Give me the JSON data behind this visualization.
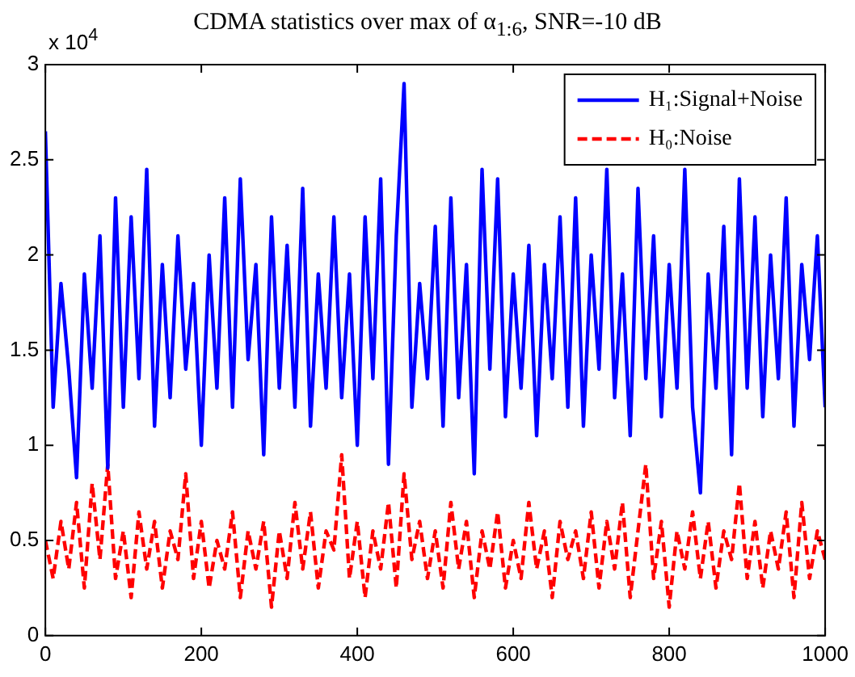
{
  "chart_data": {
    "type": "line",
    "title": "CDMA statistics over max of α$_{1:6}$, SNR=-10 dB",
    "annotations": [
      "x 10$^{4}$"
    ],
    "x": [
      0,
      10,
      20,
      30,
      40,
      50,
      60,
      70,
      80,
      90,
      100,
      110,
      120,
      130,
      140,
      150,
      160,
      170,
      180,
      190,
      200,
      210,
      220,
      230,
      240,
      250,
      260,
      270,
      280,
      290,
      300,
      310,
      320,
      330,
      340,
      350,
      360,
      370,
      380,
      390,
      400,
      410,
      420,
      430,
      440,
      450,
      460,
      470,
      480,
      490,
      500,
      510,
      520,
      530,
      540,
      550,
      560,
      570,
      580,
      590,
      600,
      610,
      620,
      630,
      640,
      650,
      660,
      670,
      680,
      690,
      700,
      710,
      720,
      730,
      740,
      750,
      760,
      770,
      780,
      790,
      800,
      810,
      820,
      830,
      840,
      850,
      860,
      870,
      880,
      890,
      900,
      910,
      920,
      930,
      940,
      950,
      960,
      970,
      980,
      990,
      1000
    ],
    "series": [
      {
        "name": "H₁:Signal+Noise",
        "color": "#0000ff",
        "line_style": "solid",
        "values": [
          2.65,
          1.2,
          1.85,
          1.4,
          0.83,
          1.9,
          1.3,
          2.1,
          0.88,
          2.3,
          1.2,
          2.2,
          1.35,
          2.45,
          1.1,
          1.95,
          1.25,
          2.1,
          1.4,
          1.85,
          1.0,
          2.0,
          1.3,
          2.3,
          1.2,
          2.4,
          1.45,
          1.95,
          0.95,
          2.2,
          1.3,
          2.05,
          1.2,
          2.35,
          1.1,
          1.9,
          1.3,
          2.2,
          1.25,
          1.9,
          1.0,
          2.2,
          1.35,
          2.4,
          0.9,
          2.1,
          2.9,
          1.2,
          1.85,
          1.35,
          2.15,
          1.1,
          2.3,
          1.25,
          1.95,
          0.85,
          2.45,
          1.4,
          2.4,
          1.15,
          1.9,
          1.3,
          2.05,
          1.05,
          1.95,
          1.35,
          2.2,
          1.2,
          2.3,
          1.1,
          2.0,
          1.4,
          2.45,
          1.25,
          1.9,
          1.05,
          2.35,
          1.35,
          2.1,
          1.15,
          1.95,
          1.3,
          2.45,
          1.2,
          0.75,
          1.9,
          1.3,
          2.15,
          0.95,
          2.4,
          1.3,
          2.2,
          1.15,
          2.0,
          1.35,
          2.3,
          1.1,
          1.95,
          1.45,
          2.1,
          1.2
        ]
      },
      {
        "name": "H₀:Noise",
        "color": "#ff0000",
        "line_style": "dashed",
        "values": [
          0.5,
          0.3,
          0.6,
          0.35,
          0.7,
          0.25,
          0.8,
          0.4,
          0.9,
          0.3,
          0.55,
          0.2,
          0.65,
          0.35,
          0.6,
          0.25,
          0.55,
          0.4,
          0.85,
          0.3,
          0.6,
          0.25,
          0.5,
          0.35,
          0.65,
          0.2,
          0.55,
          0.35,
          0.6,
          0.15,
          0.55,
          0.3,
          0.7,
          0.35,
          0.65,
          0.25,
          0.55,
          0.45,
          0.95,
          0.3,
          0.6,
          0.2,
          0.55,
          0.35,
          0.7,
          0.25,
          0.85,
          0.4,
          0.6,
          0.3,
          0.55,
          0.25,
          0.7,
          0.35,
          0.6,
          0.2,
          0.55,
          0.35,
          0.65,
          0.25,
          0.5,
          0.3,
          0.7,
          0.35,
          0.55,
          0.2,
          0.6,
          0.4,
          0.55,
          0.3,
          0.65,
          0.25,
          0.6,
          0.35,
          0.7,
          0.2,
          0.55,
          0.9,
          0.3,
          0.6,
          0.15,
          0.55,
          0.35,
          0.65,
          0.3,
          0.6,
          0.25,
          0.55,
          0.4,
          0.8,
          0.3,
          0.6,
          0.25,
          0.55,
          0.35,
          0.65,
          0.2,
          0.7,
          0.3,
          0.55,
          0.4
        ]
      }
    ],
    "xlim": [
      0,
      1000
    ],
    "xticks": [
      0,
      200,
      400,
      600,
      800,
      1000
    ],
    "ylim": [
      0,
      3
    ],
    "yticks": [
      0,
      0.5,
      1,
      1.5,
      2,
      2.5,
      3
    ],
    "grid": false,
    "legend": "top right",
    "marker": "none"
  }
}
